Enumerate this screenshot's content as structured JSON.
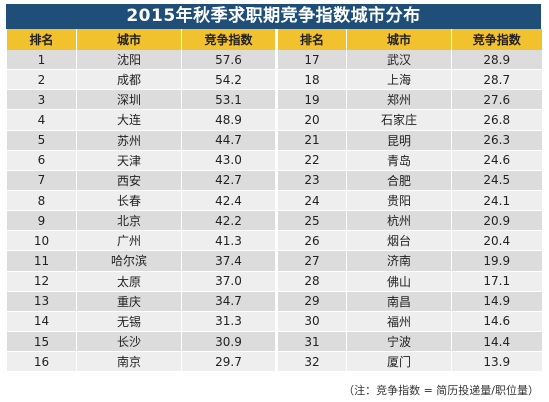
{
  "title": "2015年秋季求职期竞争指数城市分布",
  "headers": [
    "排名",
    "城市",
    "竞争指数",
    "排名",
    "城市",
    "竞争指数"
  ],
  "rows": [
    {
      "r1": "1",
      "c1": "沈阳",
      "v1": "57.6",
      "r2": "17",
      "c2": "武汉",
      "v2": "28.9"
    },
    {
      "r1": "2",
      "c1": "成都",
      "v1": "54.2",
      "r2": "18",
      "c2": "上海",
      "v2": "28.7"
    },
    {
      "r1": "3",
      "c1": "深圳",
      "v1": "53.1",
      "r2": "19",
      "c2": "郑州",
      "v2": "27.6"
    },
    {
      "r1": "4",
      "c1": "大连",
      "v1": "48.9",
      "r2": "20",
      "c2": "石家庄",
      "v2": "26.8"
    },
    {
      "r1": "5",
      "c1": "苏州",
      "v1": "44.7",
      "r2": "21",
      "c2": "昆明",
      "v2": "26.3"
    },
    {
      "r1": "6",
      "c1": "天津",
      "v1": "43.0",
      "r2": "22",
      "c2": "青岛",
      "v2": "24.6"
    },
    {
      "r1": "7",
      "c1": "西安",
      "v1": "42.7",
      "r2": "23",
      "c2": "合肥",
      "v2": "24.5"
    },
    {
      "r1": "8",
      "c1": "长春",
      "v1": "42.4",
      "r2": "24",
      "c2": "贵阳",
      "v2": "24.1"
    },
    {
      "r1": "9",
      "c1": "北京",
      "v1": "42.2",
      "r2": "25",
      "c2": "杭州",
      "v2": "20.9"
    },
    {
      "r1": "10",
      "c1": "广州",
      "v1": "41.3",
      "r2": "26",
      "c2": "烟台",
      "v2": "20.4"
    },
    {
      "r1": "11",
      "c1": "哈尔滨",
      "v1": "37.4",
      "r2": "27",
      "c2": "济南",
      "v2": "19.9"
    },
    {
      "r1": "12",
      "c1": "太原",
      "v1": "37.0",
      "r2": "28",
      "c2": "佛山",
      "v2": "17.1"
    },
    {
      "r1": "13",
      "c1": "重庆",
      "v1": "34.7",
      "r2": "29",
      "c2": "南昌",
      "v2": "14.9"
    },
    {
      "r1": "14",
      "c1": "无锡",
      "v1": "31.3",
      "r2": "30",
      "c2": "福州",
      "v2": "14.6"
    },
    {
      "r1": "15",
      "c1": "长沙",
      "v1": "30.9",
      "r2": "31",
      "c2": "宁波",
      "v2": "14.4"
    },
    {
      "r1": "16",
      "c1": "南京",
      "v1": "29.7",
      "r2": "32",
      "c2": "厦门",
      "v2": "13.9"
    }
  ],
  "note": "（注：竞争指数 = 简历投递量/职位量）",
  "colors": {
    "title_bg": "#1f4e79",
    "header_bg": "#f2c12e",
    "row_dark": "#dcdcdc",
    "row_light": "#eeeeee"
  }
}
